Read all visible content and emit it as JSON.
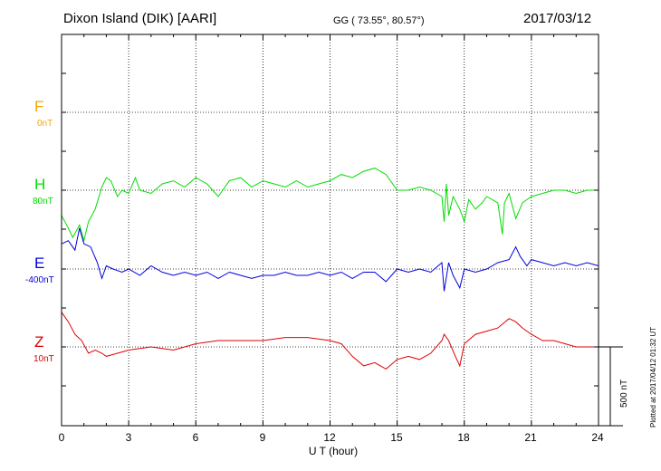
{
  "header": {
    "station": "Dixon Island (DIK)  [AARI]",
    "coords": "GG ( 73.55°,  80.57°)",
    "date": "2017/03/12"
  },
  "components": [
    {
      "key": "F",
      "letter": "F",
      "offset": "0nT",
      "color": "#f7a500"
    },
    {
      "key": "H",
      "letter": "H",
      "offset": "80nT",
      "color": "#00dd00"
    },
    {
      "key": "E",
      "letter": "E",
      "offset": "-400nT",
      "color": "#0000dd"
    },
    {
      "key": "Z",
      "letter": "Z",
      "offset": "10nT",
      "color": "#dd0000"
    }
  ],
  "xaxis": {
    "label": "U T (hour)",
    "ticks": [
      "0",
      "3",
      "6",
      "9",
      "12",
      "15",
      "18",
      "21",
      "24"
    ]
  },
  "scale_bar_label": "500 nT",
  "plotted_note": "Plotted at 2017/04/12 01:32 UT",
  "chart_data": {
    "type": "line",
    "title": "Dixon Island (DIK)  [AARI]",
    "xlabel": "U T (hour)",
    "ylabel": "",
    "xlim": [
      0,
      24
    ],
    "x_ticks": [
      0,
      3,
      6,
      9,
      12,
      15,
      18,
      21,
      24
    ],
    "grid": true,
    "series_unit": "nT (deviation from baseline)",
    "series": [
      {
        "name": "H",
        "baseline_offset": "80nT",
        "color": "#00dd00",
        "points": [
          [
            0,
            -80
          ],
          [
            0.3,
            -120
          ],
          [
            0.5,
            -150
          ],
          [
            0.8,
            -110
          ],
          [
            1.0,
            -160
          ],
          [
            1.2,
            -100
          ],
          [
            1.5,
            -60
          ],
          [
            1.8,
            10
          ],
          [
            2.0,
            40
          ],
          [
            2.2,
            30
          ],
          [
            2.5,
            -20
          ],
          [
            2.7,
            0
          ],
          [
            3.0,
            -10
          ],
          [
            3.3,
            40
          ],
          [
            3.5,
            0
          ],
          [
            4.0,
            -10
          ],
          [
            4.5,
            20
          ],
          [
            5.0,
            30
          ],
          [
            5.5,
            10
          ],
          [
            6.0,
            40
          ],
          [
            6.5,
            20
          ],
          [
            7.0,
            -20
          ],
          [
            7.5,
            30
          ],
          [
            8.0,
            40
          ],
          [
            8.5,
            10
          ],
          [
            9.0,
            30
          ],
          [
            9.5,
            20
          ],
          [
            10.0,
            10
          ],
          [
            10.5,
            30
          ],
          [
            11.0,
            10
          ],
          [
            11.5,
            20
          ],
          [
            12.0,
            30
          ],
          [
            12.5,
            50
          ],
          [
            13.0,
            40
          ],
          [
            13.5,
            60
          ],
          [
            14.0,
            70
          ],
          [
            14.5,
            50
          ],
          [
            15.0,
            0
          ],
          [
            15.5,
            0
          ],
          [
            16.0,
            10
          ],
          [
            16.5,
            0
          ],
          [
            17.0,
            -20
          ],
          [
            17.1,
            -100
          ],
          [
            17.2,
            20
          ],
          [
            17.3,
            -80
          ],
          [
            17.5,
            -20
          ],
          [
            17.8,
            -60
          ],
          [
            18.0,
            -100
          ],
          [
            18.2,
            -30
          ],
          [
            18.5,
            -60
          ],
          [
            18.8,
            -40
          ],
          [
            19.0,
            -20
          ],
          [
            19.5,
            -40
          ],
          [
            19.7,
            -140
          ],
          [
            19.8,
            -40
          ],
          [
            20.0,
            -10
          ],
          [
            20.3,
            -90
          ],
          [
            20.6,
            -40
          ],
          [
            21.0,
            -20
          ],
          [
            21.5,
            -10
          ],
          [
            22.0,
            0
          ],
          [
            22.5,
            0
          ],
          [
            23.0,
            -10
          ],
          [
            23.5,
            0
          ],
          [
            24.0,
            0
          ]
        ]
      },
      {
        "name": "E",
        "baseline_offset": "-400nT",
        "color": "#0000dd",
        "points": [
          [
            0,
            80
          ],
          [
            0.3,
            90
          ],
          [
            0.6,
            60
          ],
          [
            0.8,
            130
          ],
          [
            1.0,
            80
          ],
          [
            1.3,
            70
          ],
          [
            1.6,
            20
          ],
          [
            1.8,
            -30
          ],
          [
            2.0,
            10
          ],
          [
            2.3,
            0
          ],
          [
            2.7,
            -10
          ],
          [
            3.0,
            0
          ],
          [
            3.5,
            -20
          ],
          [
            4.0,
            10
          ],
          [
            4.5,
            -10
          ],
          [
            5.0,
            -20
          ],
          [
            5.5,
            -10
          ],
          [
            6.0,
            -20
          ],
          [
            6.5,
            -10
          ],
          [
            7.0,
            -30
          ],
          [
            7.5,
            -10
          ],
          [
            8.0,
            -20
          ],
          [
            8.5,
            -30
          ],
          [
            9.0,
            -20
          ],
          [
            9.5,
            -20
          ],
          [
            10.0,
            -10
          ],
          [
            10.5,
            -20
          ],
          [
            11.0,
            -20
          ],
          [
            11.5,
            -10
          ],
          [
            12.0,
            -20
          ],
          [
            12.5,
            -10
          ],
          [
            13.0,
            -30
          ],
          [
            13.5,
            -10
          ],
          [
            14.0,
            -10
          ],
          [
            14.5,
            -40
          ],
          [
            15.0,
            0
          ],
          [
            15.5,
            -10
          ],
          [
            16.0,
            0
          ],
          [
            16.5,
            -10
          ],
          [
            17.0,
            20
          ],
          [
            17.1,
            -70
          ],
          [
            17.3,
            20
          ],
          [
            17.5,
            -20
          ],
          [
            17.8,
            -60
          ],
          [
            18.0,
            0
          ],
          [
            18.5,
            -10
          ],
          [
            19.0,
            0
          ],
          [
            19.5,
            20
          ],
          [
            20.0,
            30
          ],
          [
            20.3,
            70
          ],
          [
            20.5,
            40
          ],
          [
            20.8,
            10
          ],
          [
            21.0,
            30
          ],
          [
            21.5,
            20
          ],
          [
            22.0,
            10
          ],
          [
            22.5,
            20
          ],
          [
            23.0,
            10
          ],
          [
            23.5,
            20
          ],
          [
            24.0,
            10
          ]
        ]
      },
      {
        "name": "Z",
        "baseline_offset": "10nT",
        "color": "#dd0000",
        "points": [
          [
            0,
            110
          ],
          [
            0.3,
            80
          ],
          [
            0.6,
            40
          ],
          [
            0.9,
            20
          ],
          [
            1.2,
            -20
          ],
          [
            1.5,
            -10
          ],
          [
            1.8,
            -20
          ],
          [
            2.0,
            -30
          ],
          [
            2.5,
            -20
          ],
          [
            3.0,
            -10
          ],
          [
            4.0,
            0
          ],
          [
            5.0,
            -10
          ],
          [
            6.0,
            10
          ],
          [
            7.0,
            20
          ],
          [
            8.0,
            20
          ],
          [
            9.0,
            20
          ],
          [
            10.0,
            30
          ],
          [
            11.0,
            30
          ],
          [
            12.0,
            20
          ],
          [
            12.5,
            10
          ],
          [
            13.0,
            -30
          ],
          [
            13.5,
            -60
          ],
          [
            14.0,
            -50
          ],
          [
            14.5,
            -70
          ],
          [
            15.0,
            -40
          ],
          [
            15.5,
            -30
          ],
          [
            16.0,
            -40
          ],
          [
            16.5,
            -20
          ],
          [
            17.0,
            20
          ],
          [
            17.1,
            40
          ],
          [
            17.3,
            20
          ],
          [
            17.6,
            -30
          ],
          [
            17.8,
            -60
          ],
          [
            18.0,
            10
          ],
          [
            18.5,
            40
          ],
          [
            19.0,
            50
          ],
          [
            19.5,
            60
          ],
          [
            20.0,
            90
          ],
          [
            20.3,
            80
          ],
          [
            20.6,
            60
          ],
          [
            21.0,
            40
          ],
          [
            21.5,
            20
          ],
          [
            22.0,
            20
          ],
          [
            22.5,
            10
          ],
          [
            23.0,
            0
          ],
          [
            23.5,
            0
          ],
          [
            24.0,
            0
          ]
        ]
      }
    ],
    "scale_bar_nT": 500
  }
}
